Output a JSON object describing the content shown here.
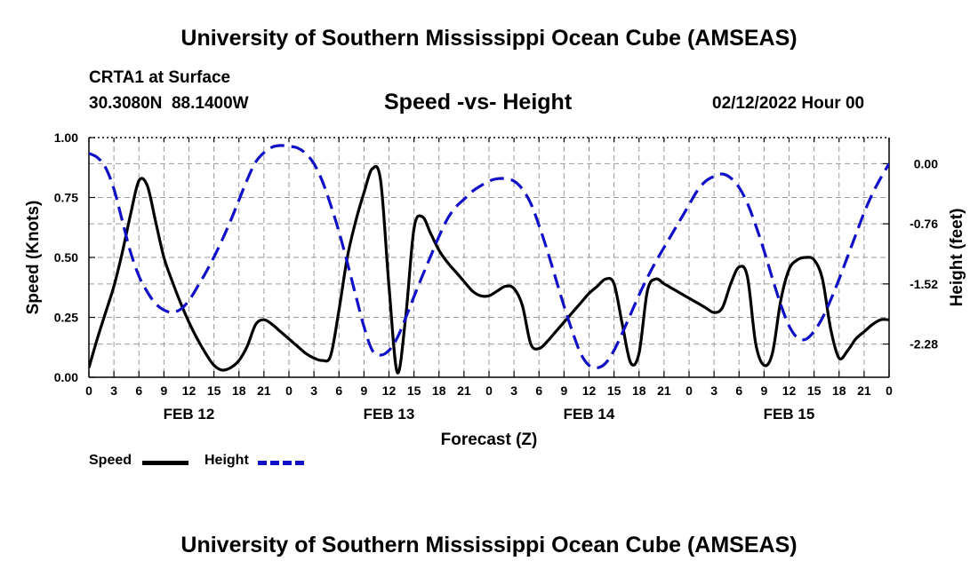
{
  "page": {
    "title": "University of Southern Mississippi Ocean Cube (AMSEAS)",
    "footer_title": "University of Southern Mississippi Ocean Cube (AMSEAS)",
    "station": "CRTA1 at Surface",
    "coords": "30.3080N  88.1400W",
    "chart_name": "Speed -vs- Height",
    "date_label": "02/12/2022 Hour 00"
  },
  "legend": {
    "speed_label": "Speed",
    "height_label": "Height"
  },
  "colors": {
    "speed": "#000000",
    "height": "#1010c8",
    "grid": "#9a9a9a"
  },
  "chart_data": {
    "type": "line",
    "title": "Speed -vs- Height",
    "xlabel": "Forecast (Z)",
    "ylabel": "Speed (Knots)",
    "y2label": "Height (feet)",
    "xlim": [
      0,
      96
    ],
    "ylim": [
      0,
      1.0
    ],
    "y2lim": [
      -2.7,
      0.33
    ],
    "x_ticks": [
      0,
      3,
      6,
      9,
      12,
      15,
      18,
      21,
      24,
      27,
      30,
      33,
      36,
      39,
      42,
      45,
      48,
      51,
      54,
      57,
      60,
      63,
      66,
      69,
      72,
      75,
      78,
      81,
      84,
      87,
      90,
      93,
      96
    ],
    "x_tick_labels": [
      "0",
      "3",
      "6",
      "9",
      "12",
      "15",
      "18",
      "21",
      "0",
      "3",
      "6",
      "9",
      "12",
      "15",
      "18",
      "21",
      "0",
      "3",
      "6",
      "9",
      "12",
      "15",
      "18",
      "21",
      "0",
      "3",
      "6",
      "9",
      "12",
      "15",
      "18",
      "21",
      "0"
    ],
    "day_labels": [
      {
        "x": 12,
        "label": "FEB 12"
      },
      {
        "x": 36,
        "label": "FEB 13"
      },
      {
        "x": 60,
        "label": "FEB 14"
      },
      {
        "x": 84,
        "label": "FEB 15"
      }
    ],
    "y_ticks": [
      0,
      0.25,
      0.5,
      0.75,
      1.0
    ],
    "y_tick_labels": [
      "0.00",
      "0.25",
      "0.50",
      "0.75",
      "1.00"
    ],
    "y2_ticks": [
      0,
      -0.76,
      -1.52,
      -2.28
    ],
    "y2_tick_labels": [
      "0.00",
      "-0.76",
      "-1.52",
      "-2.28"
    ],
    "series": [
      {
        "name": "Speed",
        "axis": "left",
        "style": "solid",
        "x": [
          0,
          1,
          2,
          3,
          4,
          5,
          6,
          7,
          8,
          9,
          10,
          11,
          12,
          13,
          14,
          15,
          16,
          17,
          18,
          19,
          20,
          21,
          22,
          23,
          24,
          25,
          26,
          27,
          28,
          29,
          30,
          31,
          32,
          33,
          34,
          35,
          36,
          37,
          38,
          39,
          40,
          41,
          42,
          43,
          44,
          45,
          46,
          47,
          48,
          49,
          50,
          51,
          52,
          53,
          54,
          55,
          56,
          57,
          58,
          59,
          60,
          61,
          62,
          63,
          64,
          65,
          66,
          67,
          68,
          69,
          70,
          71,
          72,
          73,
          74,
          75,
          76,
          77,
          78,
          79,
          80,
          81,
          82,
          83,
          84,
          85,
          86,
          87,
          88,
          89,
          90,
          91,
          92,
          93,
          94,
          95,
          96
        ],
        "values": [
          0.04,
          0.16,
          0.27,
          0.38,
          0.52,
          0.68,
          0.82,
          0.8,
          0.65,
          0.5,
          0.4,
          0.31,
          0.23,
          0.16,
          0.1,
          0.05,
          0.03,
          0.04,
          0.07,
          0.13,
          0.22,
          0.24,
          0.22,
          0.19,
          0.16,
          0.13,
          0.1,
          0.08,
          0.07,
          0.09,
          0.28,
          0.5,
          0.65,
          0.77,
          0.87,
          0.82,
          0.38,
          0.02,
          0.25,
          0.62,
          0.67,
          0.6,
          0.53,
          0.48,
          0.44,
          0.4,
          0.36,
          0.34,
          0.34,
          0.36,
          0.38,
          0.37,
          0.3,
          0.14,
          0.12,
          0.15,
          0.19,
          0.23,
          0.27,
          0.31,
          0.35,
          0.38,
          0.41,
          0.39,
          0.22,
          0.06,
          0.1,
          0.36,
          0.41,
          0.39,
          0.37,
          0.35,
          0.33,
          0.31,
          0.29,
          0.27,
          0.29,
          0.39,
          0.46,
          0.42,
          0.14,
          0.05,
          0.1,
          0.32,
          0.45,
          0.49,
          0.5,
          0.49,
          0.41,
          0.2,
          0.08,
          0.11,
          0.16,
          0.19,
          0.22,
          0.24,
          0.24
        ]
      },
      {
        "name": "Height",
        "axis": "right",
        "style": "dashed",
        "x": [
          0,
          1,
          2,
          3,
          4,
          5,
          6,
          7,
          8,
          9,
          10,
          11,
          12,
          13,
          14,
          15,
          16,
          17,
          18,
          19,
          20,
          21,
          22,
          23,
          24,
          25,
          26,
          27,
          28,
          29,
          30,
          31,
          32,
          33,
          34,
          35,
          36,
          37,
          38,
          39,
          40,
          41,
          42,
          43,
          44,
          45,
          46,
          47,
          48,
          49,
          50,
          51,
          52,
          53,
          54,
          55,
          56,
          57,
          58,
          59,
          60,
          61,
          62,
          63,
          64,
          65,
          66,
          67,
          68,
          69,
          70,
          71,
          72,
          73,
          74,
          75,
          76,
          77,
          78,
          79,
          80,
          81,
          82,
          83,
          84,
          85,
          86,
          87,
          88,
          89,
          90,
          91,
          92,
          93,
          94,
          95,
          96
        ],
        "values": [
          0.13,
          0.08,
          -0.05,
          -0.32,
          -0.72,
          -1.12,
          -1.42,
          -1.62,
          -1.77,
          -1.85,
          -1.88,
          -1.84,
          -1.73,
          -1.56,
          -1.38,
          -1.18,
          -0.96,
          -0.72,
          -0.46,
          -0.2,
          0.02,
          0.14,
          0.21,
          0.23,
          0.22,
          0.2,
          0.13,
          0.0,
          -0.22,
          -0.52,
          -0.86,
          -1.25,
          -1.66,
          -2.06,
          -2.36,
          -2.42,
          -2.36,
          -2.2,
          -1.95,
          -1.68,
          -1.42,
          -1.17,
          -0.92,
          -0.7,
          -0.55,
          -0.45,
          -0.35,
          -0.28,
          -0.22,
          -0.19,
          -0.19,
          -0.22,
          -0.32,
          -0.5,
          -0.78,
          -1.1,
          -1.45,
          -1.8,
          -2.12,
          -2.4,
          -2.55,
          -2.58,
          -2.52,
          -2.36,
          -2.14,
          -1.9,
          -1.66,
          -1.44,
          -1.24,
          -1.06,
          -0.88,
          -0.7,
          -0.52,
          -0.34,
          -0.22,
          -0.16,
          -0.13,
          -0.18,
          -0.3,
          -0.5,
          -0.78,
          -1.1,
          -1.45,
          -1.78,
          -2.05,
          -2.2,
          -2.22,
          -2.12,
          -1.95,
          -1.72,
          -1.46,
          -1.18,
          -0.9,
          -0.62,
          -0.38,
          -0.18,
          0.0
        ]
      }
    ]
  }
}
